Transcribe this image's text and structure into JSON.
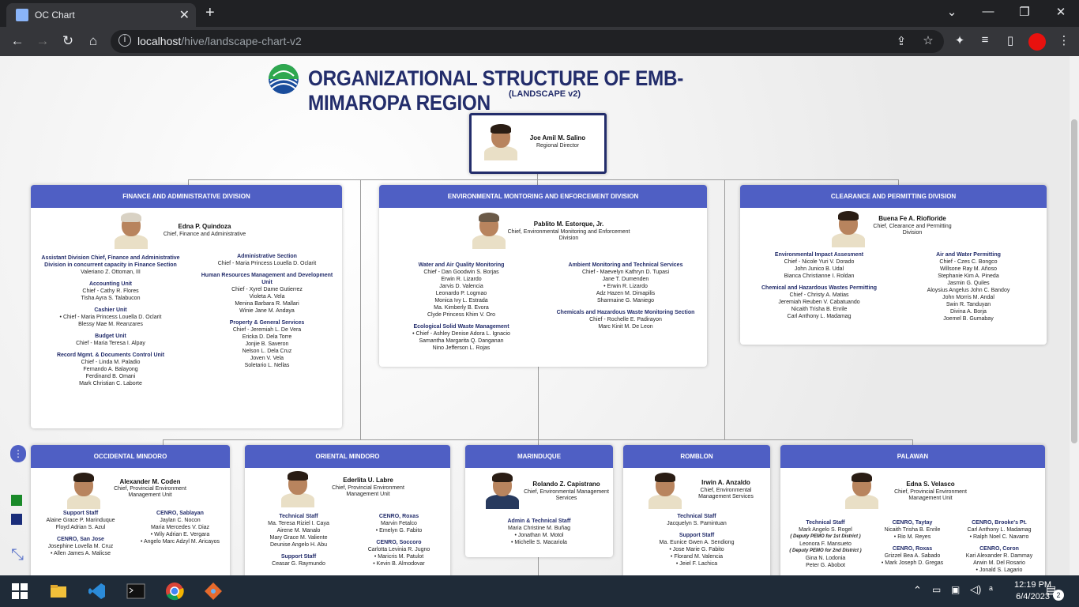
{
  "browser": {
    "tab_title": "OC Chart",
    "url_host": "localhost",
    "url_path": "/hive/landscape-chart-v2"
  },
  "page": {
    "title": "ORGANIZATIONAL STRUCTURE OF EMB-MIMAROPA REGION",
    "subtitle": "(LANDSCAPE v2)"
  },
  "director": {
    "name": "Joe Amil M. Salino",
    "role": "Regional Director"
  },
  "divisions": [
    {
      "title": "FINANCE AND ADMINISTRATIVE DIVISION",
      "head": "Edna P. Quindoza",
      "role": "Chief, Finance and Administrative",
      "left": [
        {
          "h": "Assistant Division Chief, Finance and Administrative Division in concurrent capacity in Finance Section",
          "m": [
            "Valeriano Z. Ottoman, III"
          ]
        },
        {
          "h": "Accounting Unit",
          "m": [
            "Chief - Cathy R. Flores",
            "Tisha Ayra S. Talabucon"
          ]
        },
        {
          "h": "Cashier Unit",
          "m": [
            "• Chief - Maria Princess Louella D. Oclarit",
            "Blessy Mae M. Reanzares"
          ]
        },
        {
          "h": "Budget Unit",
          "m": [
            "Chief - Maria Teresa I. Alpay"
          ]
        },
        {
          "h": "Record Mgmt. & Documents Control Unit",
          "m": [
            "Chief - Linda M. Paladio",
            "Fernando A. Balayong",
            "Ferdinand B. Omani",
            "Mark Christian C. Laborte"
          ]
        }
      ],
      "right": [
        {
          "h": "Administrative Section",
          "m": [
            "Chief - Maria Princess Louella D. Oclarit"
          ]
        },
        {
          "h": "Human Resources Management and Development Unit",
          "m": [
            "Chief - Xyrel Dame Gutierrez",
            "Violeta A. Vela",
            "Menina Barbara R. Mallari",
            "Winie Jane M. Andaya"
          ]
        },
        {
          "h": "Property & General Services",
          "m": [
            "Chief - Jeremiah L. De Vera",
            "Ericka D. Dela Torre",
            "Jonjie B. Saveron",
            "Nelson L. Dela Cruz",
            "Joven V. Vela",
            "Soletario L. Nellas"
          ]
        }
      ]
    },
    {
      "title": "ENVIRONMENTAL MONTORING AND ENFORCEMENT DIVISION",
      "head": "Pablito M. Estorque, Jr.",
      "role": "Chief, Environmental Monitoring and Enforcement Division",
      "left": [
        {
          "h": "Water and Air Quality Monitoring",
          "m": [
            "Chief - Dan Goodwin S. Borjas",
            "Erwin R. Lizardo",
            "Jarvis D. Valencia",
            "Leonardo P. Logmao",
            "Monica Ivy L. Estrada",
            "Ma. Kimberly B. Evora",
            "Clyde Princess Khim V. Oro"
          ]
        },
        {
          "h": "Ecological Solid Waste Management",
          "m": [
            "• Chief - Ashley Denise Adora L. Ignacio",
            "Samantha Margarita Q. Danganan",
            "Nino Jefferson L. Rojas"
          ]
        }
      ],
      "right": [
        {
          "h": "Ambient Monitoring and Technical Services",
          "m": [
            "Chief - Maevelyn Kathryn D. Tupasi",
            "Jane T. Dumenden",
            "• Erwin R. Lizardo",
            "Adz Hazen M. Dimapilis",
            "Sharmaine G. Maniego"
          ]
        },
        {
          "h": "Chemicals and Hazardous Waste Monitoring Section",
          "m": [
            "Chief - Rochelle E. Padirayon",
            "Marc Kinit M. De Leon"
          ]
        }
      ]
    },
    {
      "title": "CLEARANCE AND PERMITTING DIVISION",
      "head": "Buena Fe A. Riofloride",
      "role": "Chief, Clearance and Permitting Division",
      "left": [
        {
          "h": "Environmental Impact Assesment",
          "m": [
            "Chief - Nicole Yuri V. Dorado",
            "John Junico B. Udal",
            "Bianca Christianne I. Roldan"
          ]
        },
        {
          "h": "Chemical and Hazardous Wastes Permitting",
          "m": [
            "Chief - Christy A. Matias",
            "Jeremiah Reuben V. Cabatuando",
            "Nicaith Trisha B. Enrile",
            "Carl Anthony L. Madamag"
          ]
        }
      ],
      "right": [
        {
          "h": "Air and Water Permitting",
          "m": [
            "Chief - Czes C. Bongco",
            "Willsone Ray M. Añoso",
            "Stephanie Kim A. Pineda",
            "Jasmin G. Quiles",
            "Aloysius Angelus John C. Bandoy",
            "John Morris M. Andal",
            "Swin R. Tanduyan",
            "Divina A. Borja",
            "Joemel B. Gumabay"
          ]
        }
      ]
    }
  ],
  "provinces": [
    {
      "title": "OCCIDENTAL MINDORO",
      "head": "Alexander M. Coden",
      "role": "Chief, Provincial Environment Management Unit",
      "cols": [
        [
          {
            "h": "Support Staff",
            "m": [
              "Alaine Grace P. Marinduque",
              "Floyd Adrian S. Azul"
            ]
          },
          {
            "h": "CENRO, San Jose",
            "m": [
              "Josephine Lovella M. Cruz",
              "• Allen James A. Malicse"
            ]
          }
        ],
        [
          {
            "h": "CENRO, Sablayan",
            "m": [
              "Jaylan C. Nocon",
              "Maria Mercedes V. Diaz",
              "• Wily Adrian E. Vergara",
              "• Angelo Marc Adzyl M. Aricayos"
            ]
          }
        ]
      ]
    },
    {
      "title": "ORIENTAL MINDORO",
      "head": "Ederlita U. Labre",
      "role": "Chief, Provincial Environment Management Unit",
      "cols": [
        [
          {
            "h": "Technical Staff",
            "m": [
              "Ma. Teresa Riziel I. Caya",
              "Airene M. Manalo",
              "Mary Grace M. Valiente",
              "Deunise Angelo H. Abu"
            ]
          },
          {
            "h": "Support Staff",
            "m": [
              "Ceasar G. Raymundo"
            ]
          }
        ],
        [
          {
            "h": "CENRO, Roxas",
            "m": [
              "Marvin Fetalco",
              "• Emelyn G. Fabito"
            ]
          },
          {
            "h": "CENRO, Soccoro",
            "m": [
              "Carlotta Levinia R. Jugno",
              "• Maricris M. Patulot",
              "• Kevin B. Almodovar"
            ]
          }
        ]
      ]
    },
    {
      "title": "MARINDUQUE",
      "head": "Rolando Z. Capistrano",
      "role": "Chief, Environmental Management Services",
      "cols": [
        [
          {
            "h": "Admin & Technical Staff",
            "m": [
              "Maria Christine M. Buñag",
              "• Jonathan M. Motol",
              "• Michelle S. Macariola"
            ]
          }
        ]
      ]
    },
    {
      "title": "ROMBLON",
      "head": "Irwin A. Anzaldo",
      "role": "Chief, Environmental Management Services",
      "cols": [
        [
          {
            "h": "Technical Staff",
            "m": [
              "Jacquelyn S. Pamintuan"
            ]
          },
          {
            "h": "Support Staff",
            "m": [
              "Ma. Eunice Gwen A. Sendiong",
              "• Jose Marie G. Fabito",
              "• Florand M. Valencia",
              "• Jeiel F. Lachica"
            ]
          }
        ]
      ]
    },
    {
      "title": "PALAWAN",
      "head": "Edna S. Velasco",
      "role": "Chief, Provincial Environment Management Unit",
      "cols": [
        [
          {
            "h": "Technical Staff",
            "m": [
              "Mark Angelo S. Rogel",
              "( Deputy PEMO for 1st District )",
              "Leonora F. Mansueto",
              "( Deputy PEMO for 2nd District )",
              "Gina N. Lodonia",
              "Peter G. Abobot"
            ]
          }
        ],
        [
          {
            "h": "CENRO, Taytay",
            "m": [
              "Nicaith Trisha B. Enrile",
              "• Rio M. Reyes"
            ]
          },
          {
            "h": "CENRO, Roxas",
            "m": [
              "Grizzel Bea A. Sabado",
              "• Mark Joseph D. Gregas"
            ]
          }
        ],
        [
          {
            "h": "CENRO, Brooke's Pt.",
            "m": [
              "Carl Anthony L. Madamag",
              "• Ralph Noel C. Navarro"
            ]
          },
          {
            "h": "CENRO, Coron",
            "m": [
              "Kari Alexander R. Dammay",
              "Arwin M. Del Rosario",
              "• Jonald S. Lagario"
            ]
          }
        ]
      ]
    }
  ],
  "taskbar": {
    "time": "12:19 PM",
    "date": "6/4/2023",
    "notif": "2"
  },
  "colors": {
    "header_blue": "#4f5fc4",
    "title_navy": "#232d6b"
  }
}
